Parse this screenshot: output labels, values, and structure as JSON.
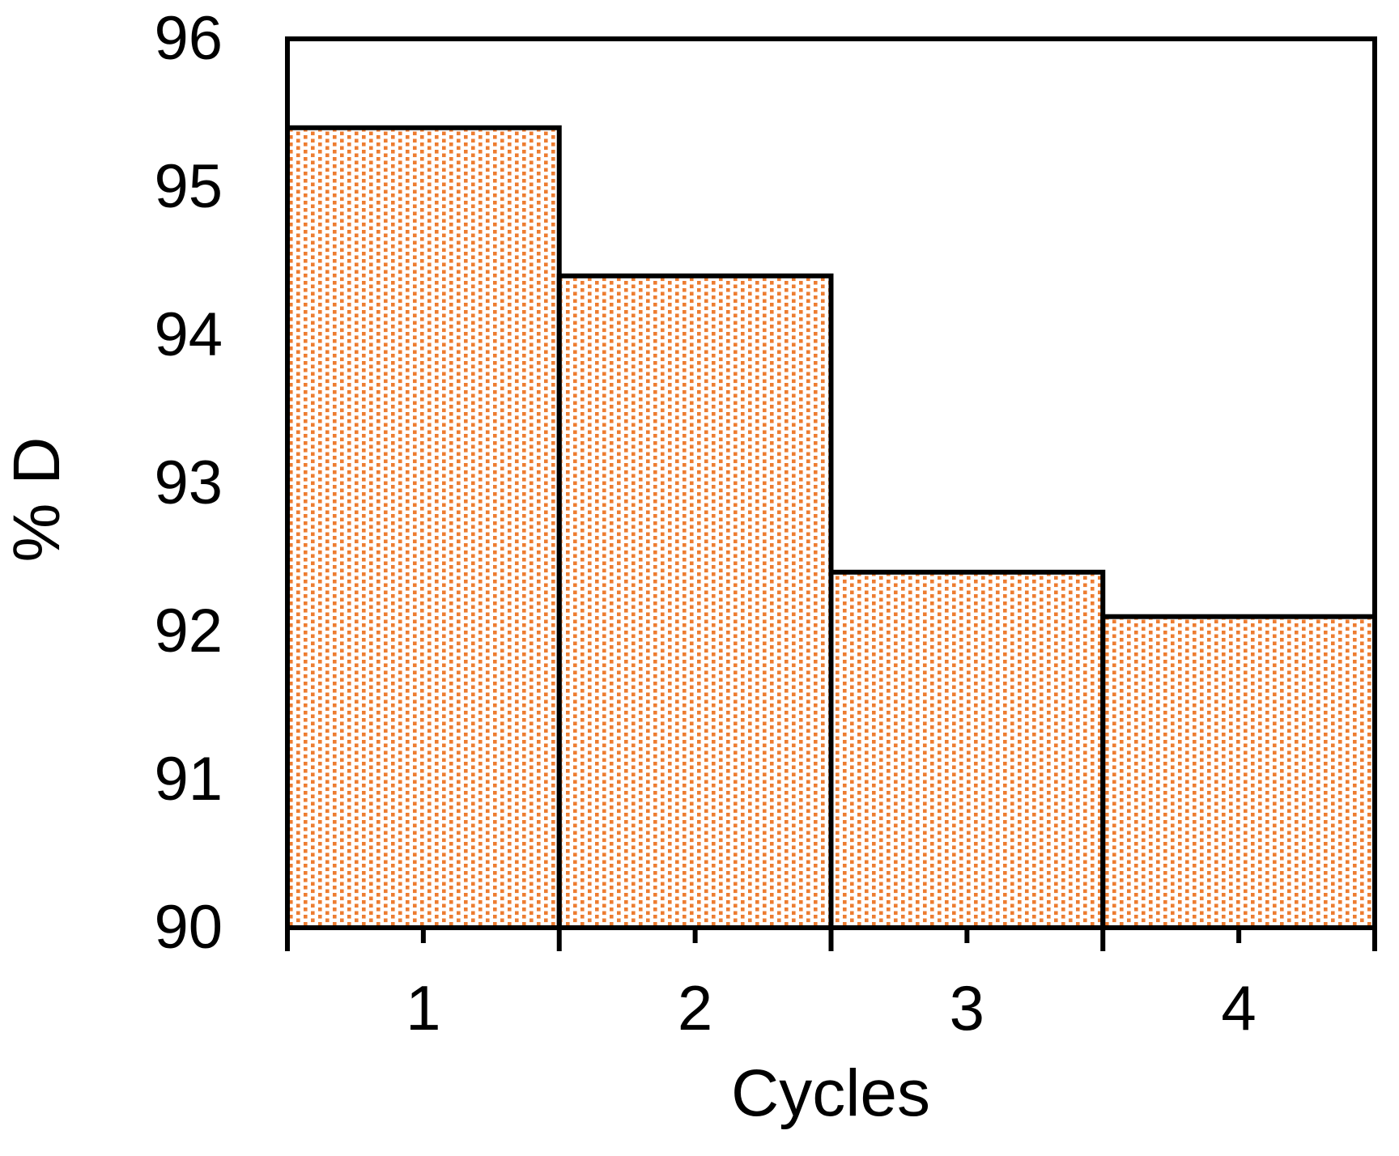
{
  "chart_data": {
    "type": "bar",
    "categories": [
      "1",
      "2",
      "3",
      "4"
    ],
    "values": [
      95.4,
      94.4,
      92.4,
      92.1
    ],
    "title": "",
    "xlabel": "Cycles",
    "ylabel": "% D",
    "ylim": [
      90,
      96
    ],
    "yticks": [
      96,
      95,
      94,
      93,
      92,
      91,
      90
    ],
    "grid": false,
    "legend": "none",
    "bar_gap": 0,
    "bar_fill_pattern": "orange-square-dot-grid",
    "bar_fill_color": "#ED7D31",
    "bar_border_color": "#000000",
    "axis_color": "#000000",
    "background_color": "#FFFFFF"
  }
}
